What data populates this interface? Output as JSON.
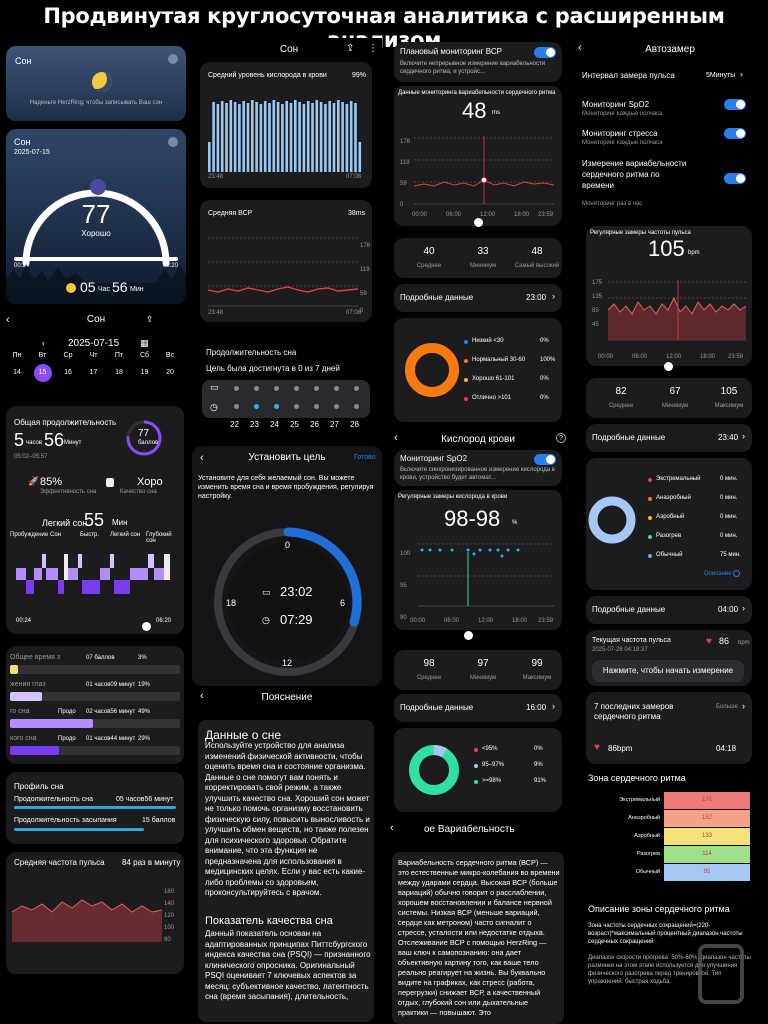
{
  "title": "Продвинутая круглосуточная аналитика с расширенным анализом",
  "c1": {
    "widget1": {
      "title": "Сон",
      "hint": "Наденьте HerzRing, чтобы записывать Ваш сон"
    },
    "widget2": {
      "title": "Сон",
      "date": "2025-07-15",
      "score": "77",
      "label": "Хорошо",
      "start": "00:24",
      "end": "06:20",
      "hours": "05",
      "h_unit": "Час",
      "mins": "56",
      "m_unit": "Мин"
    },
    "header": {
      "title": "Сон",
      "date": "2025-07-15"
    },
    "days": [
      {
        "d": "Пн",
        "n": "14"
      },
      {
        "d": "Вт",
        "n": "15"
      },
      {
        "d": "Ср",
        "n": "16"
      },
      {
        "d": "Чт",
        "n": "17"
      },
      {
        "d": "Пт",
        "n": "18"
      },
      {
        "d": "Сб",
        "n": "19"
      },
      {
        "d": "Вс",
        "n": "20"
      }
    ],
    "total": {
      "label": "Общая продолжительность",
      "h": "5",
      "h_unit": "часов",
      "m": "56",
      "m_unit": "Минут",
      "range": "05:02–05:57",
      "score": "77",
      "score_unit": "баллов"
    },
    "eff": {
      "value": "85%",
      "label": "Эффективность сна",
      "quality": "Хорo",
      "quality_label": "Качество сна"
    },
    "light": {
      "label": "Легкий сон",
      "value": "55",
      "unit": "Мин"
    },
    "legend": [
      "Пробуждение",
      "Сон",
      "Быстр.",
      "Легкий сон",
      "Глубокий сон"
    ],
    "stage_start": "00:24",
    "stage_end": "06:20",
    "stage_rows": [
      {
        "label": "Общее время з",
        "value": "07 баллов",
        "pct": "3%",
        "color": "#e8e07a"
      },
      {
        "label": "жения глаз",
        "value": "01 часов09 минут",
        "pct": "19%",
        "color": "#d4c3ff"
      },
      {
        "label": "го сна",
        "sub": "Продо",
        "value": "02 часов56 минут",
        "pct": "49%",
        "color": "#b38cff"
      },
      {
        "label": "кого сна",
        "sub": "Продо",
        "value": "01 часов44 минут",
        "pct": "29%",
        "color": "#7a3cf0"
      }
    ],
    "profile": {
      "title": "Профиль сна",
      "r1_label": "Продолжительность сна",
      "r1_value": "05 часов56 минут",
      "r2_label": "Продолжительность засыпания",
      "r2_value": "15 баллов"
    },
    "hr": {
      "label": "Средняя частота пульса",
      "value": "84 раз в минуту",
      "ticks": [
        "160",
        "140",
        "120",
        "100",
        "80"
      ]
    }
  },
  "c2": {
    "header": "Сон",
    "oxy": {
      "label": "Средний уровень кислорода в крови",
      "value": "99%",
      "start": "23:48",
      "end": "07:08"
    },
    "hrv": {
      "label": "Средняя ВСР",
      "value": "38ms",
      "ticks": [
        "178",
        "119",
        "59",
        "0"
      ],
      "start": "23:48",
      "end": "07:08"
    },
    "goal": {
      "title": "Продолжительность сна",
      "text": "Цель была достигнута в 0 из 7 дней",
      "days": [
        "22",
        "23",
        "24",
        "25",
        "26",
        "27",
        "28"
      ]
    },
    "set": {
      "title": "Установить цель",
      "done": "Готово",
      "text": "Установите для себя желаемый сон. Вы можете изменить время сна и время пробуждения, регулируя настройку.",
      "bed": "23:02",
      "wake": "07:29",
      "n0": "0",
      "n6": "6",
      "n12": "12",
      "n18": "18"
    },
    "expl": {
      "title": "Пояснение",
      "h1": "Данные о сне",
      "p1": "Используйте устройство для анализа изменений физической активности, чтобы оценить время сна и состояние организма. Данные о сне помогут вам понять и корректировать свой режим, а также улучшить качество сна. Хороший сон может не только помочь организму восстановить физическую силу, повысить выносливость и улучшить обмен веществ, но также полезен для психического здоровья. Обратите внимание, что эта функция не предназначена для использования в медицинских целях. Если у вас есть какие-либо проблемы со здоровьем, проконсультируйтесь с врачом.",
      "h2": "Показатель качества сна",
      "p2": "Данный показатель основан на адаптированных принципах Питтсбургского индекса качества сна (PSQI) — признанного клинического опросника. Оригинальный PSQI оценивает 7 ключевых аспектов за месяц: субъективное качество, латентность сна (время засыпания), длительность,"
    }
  },
  "c3": {
    "plan": {
      "title": "Плановый мониторинг ВСР",
      "sub": "Включите непрерывное измерение вариабельности сердечного ритма, и устройс..."
    },
    "hrvday": {
      "label": "Данные мониторинга вариабельности сердечного ритма",
      "value": "48",
      "unit": "ms",
      "ticks": [
        "178",
        "119",
        "59",
        "0"
      ],
      "times": [
        "00:00",
        "06:00",
        "12:00",
        "18:00",
        "23:59"
      ]
    },
    "stats": [
      {
        "v": "40",
        "l": "Среднее"
      },
      {
        "v": "33",
        "l": "Минимум"
      },
      {
        "v": "48",
        "l": "Самый высокий"
      }
    ],
    "detail": {
      "label": "Подробные данные",
      "time": "23:00"
    },
    "ranges": [
      {
        "dot": "#2b7de9",
        "l": "Низкий <30",
        "p": "0%"
      },
      {
        "dot": "#f57a0f",
        "l": "Нормальный 30-60",
        "p": "100%"
      },
      {
        "dot": "#f5c20f",
        "l": "Хорошо 61-101",
        "p": "0%"
      },
      {
        "dot": "#e43f3f",
        "l": "Отлично >101",
        "p": "0%"
      }
    ],
    "spo2head": "Кислород крови",
    "spo2mon": {
      "title": "Мониторинг SpO2",
      "sub": "Включите синхронизированное измерение кислорода в крови, устройство будет автомат..."
    },
    "spo2chart": {
      "label": "Регулярные замеры кислорода в крови",
      "value": "98-98",
      "unit": "%",
      "ticks": [
        "100",
        "95",
        "90"
      ],
      "times": [
        "00:00",
        "06:00",
        "12:00",
        "18:00",
        "23:59"
      ]
    },
    "spo2stats": [
      {
        "v": "98",
        "l": "Среднее"
      },
      {
        "v": "97",
        "l": "Минимум"
      },
      {
        "v": "99",
        "l": "Максимум"
      }
    ],
    "spo2detail": {
      "label": "Подробные данные",
      "time": "16:00"
    },
    "spo2ranges": [
      {
        "dot": "#e43f7a",
        "l": "<95%",
        "p": "0%"
      },
      {
        "dot": "#a5c8f0",
        "l": "95–97%",
        "p": "9%"
      },
      {
        "dot": "#2fe0a0",
        "l": ">=98%",
        "p": "91%"
      }
    ],
    "var": {
      "title": "ое Вариабельность",
      "text": "Вариабельность сердечного ритма (ВСР) — это естественные микро-колебания во времени между ударами сердца. Высокая ВСР (больше вариаций) обычно говорит о расслаблении, хорошем восстановлении и балансе нервной системы. Низкая ВСР (меньше вариаций, сердце как метроном) часто сигналит о стрессе, усталости или недостатке отдыха. Отслеживание ВСР с помощью HerzRing — ваш ключ к самопознанию: она дает объективную картину того, как ваше тело реально реагирует на жизнь. Вы буквально видите на графиках, как стресс (работа, перегрузки) снижает ВСР, а качественный отдых, глубокий сон или дыхательные практики — повышают. Это"
    }
  },
  "c4": {
    "header": "Автозамер",
    "interval": {
      "label": "Интервал замера пульса",
      "value": "5Минуты"
    },
    "toggles": [
      {
        "t": "Мониторинг SpO2",
        "s": "Мониторинг каждые полчаса"
      },
      {
        "t": "Мониторинг стресса",
        "s": "Мониторинг каждые полчаса"
      },
      {
        "t": "Измерение вариабельности сердечного ритма по времени",
        "s": "Мониторинг раз в час"
      }
    ],
    "hr": {
      "label": "Регулярные замеры частоты пульса",
      "value": "105",
      "unit": "bpm",
      "ticks": [
        "175",
        "135",
        "85",
        "45"
      ],
      "times": [
        "00:00",
        "06:00",
        "12:00",
        "18:00",
        "23:59"
      ]
    },
    "stats": [
      {
        "v": "82",
        "l": "Среднее"
      },
      {
        "v": "67",
        "l": "Минимум"
      },
      {
        "v": "105",
        "l": "Максимум"
      }
    ],
    "detail": {
      "label": "Подробные данные",
      "time": "23:40"
    },
    "zones": [
      {
        "dot": "#e43f3f",
        "l": "Экстремальный",
        "v": "0 мин."
      },
      {
        "dot": "#f57a0f",
        "l": "Анаэробный",
        "v": "0 мин."
      },
      {
        "dot": "#f5c20f",
        "l": "Аэробный",
        "v": "0 мин."
      },
      {
        "dot": "#2fe0a0",
        "l": "Разогрев",
        "v": "0 мин."
      },
      {
        "dot": "#6aa8f0",
        "l": "Обычный",
        "v": "75 мин."
      }
    ],
    "desc": "Описание",
    "detail2": {
      "label": "Подробные данные",
      "time": "04:00"
    },
    "cur": {
      "label": "Текущая частота пульса",
      "date": "2025-07-28 04:18:37",
      "value": "86",
      "btn": "Нажмите, чтобы начать измерение"
    },
    "last7": {
      "title": "7 последних замеров сердечного ритма",
      "more": "Больше",
      "bpm": "86bpm",
      "time": "04:18"
    },
    "zonechart": {
      "title": "Зона сердечного ритма",
      "rows": [
        {
          "l": "Экстремальный",
          "v": "171",
          "c": "#f07a7a"
        },
        {
          "l": "Анаэробный",
          "v": "152",
          "c": "#f5a28a"
        },
        {
          "l": "Аэробный",
          "v": "133",
          "c": "#f5e07a"
        },
        {
          "l": "Разогрев",
          "v": "114",
          "c": "#9fe08a"
        },
        {
          "l": "Обычный",
          "v": "95",
          "c": "#a5c8f5"
        }
      ]
    },
    "zdesc": {
      "title": "Описание зоны сердечного ритма",
      "p1": "Зона частоты сердечных сокращений=(220-возраст)*максимальный процентный диапазон частоты сердечных сокращений",
      "p2": "Диапазон скорости прогрева: 50%-60%. диапазон частоты разминки на этом этапе используется для улучшения физического разогрева перед тренировкой. Тип упражнений: быстрая ходьба."
    }
  }
}
